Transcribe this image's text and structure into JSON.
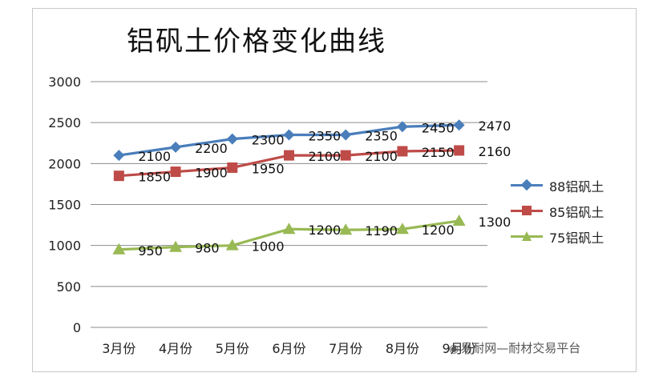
{
  "chart_data": {
    "type": "line",
    "title": "铝矾土价格变化曲线",
    "categories": [
      "3月份",
      "4月份",
      "5月份",
      "6月份",
      "7月份",
      "8月份",
      "9月份"
    ],
    "ylim": [
      0,
      3000
    ],
    "yticks": [
      "0",
      "500",
      "1000",
      "1500",
      "2000",
      "2500",
      "3000"
    ],
    "grid": true,
    "legend_position": "right",
    "series": [
      {
        "name": "88铝矾土",
        "values": [
          2100,
          2200,
          2300,
          2350,
          2350,
          2450,
          2470
        ],
        "color": "#4a7ebb",
        "marker": "diamond"
      },
      {
        "name": "85铝矾土",
        "values": [
          1850,
          1900,
          1950,
          2100,
          2100,
          2150,
          2160
        ],
        "color": "#be4b48",
        "marker": "square"
      },
      {
        "name": "75铝矾土",
        "values": [
          950,
          980,
          1000,
          1200,
          1190,
          1200,
          1300
        ],
        "color": "#98b954",
        "marker": "triangle"
      }
    ]
  },
  "watermark": "易耐网—耐材交易平台",
  "watermark_icon": "wechat-icon"
}
